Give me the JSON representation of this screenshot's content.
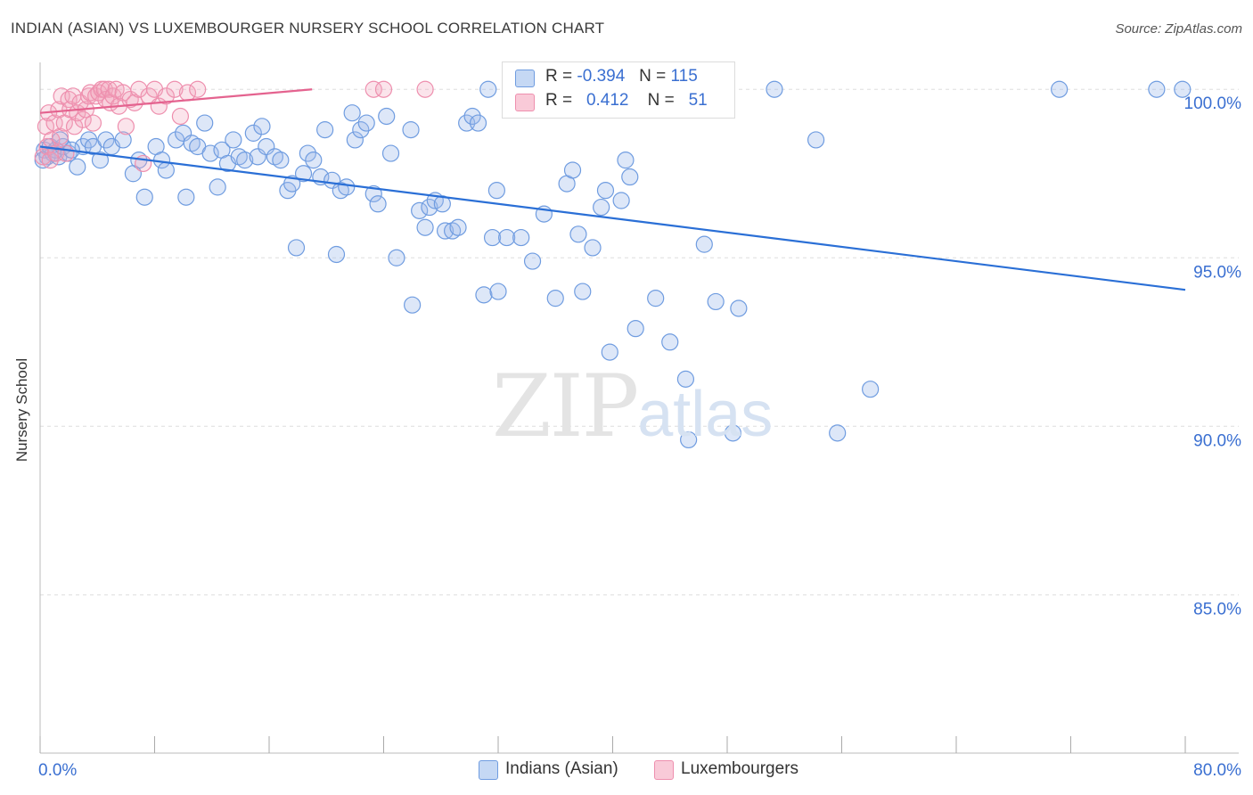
{
  "title": "INDIAN (ASIAN) VS LUXEMBOURGER NURSERY SCHOOL CORRELATION CHART",
  "source": "Source: ZipAtlas.com",
  "watermark": {
    "zip": "ZIP",
    "atlas": "atlas"
  },
  "legend": {
    "rows": [
      {
        "r_label": "R =",
        "r_value": "-0.394",
        "n_label": "N =",
        "n_value": "115",
        "color": "#9dbbea"
      },
      {
        "r_label": "R =",
        "r_value": "0.412",
        "n_label": "N =",
        "n_value": "51",
        "color": "#f2a6bd"
      }
    ]
  },
  "bottom_legend": [
    {
      "label": "Indians (Asian)",
      "color": "#9dbbea"
    },
    {
      "label": "Luxembourgers",
      "color": "#f2a6bd"
    }
  ],
  "chart_data": {
    "type": "scatter",
    "title": "INDIAN (ASIAN) VS LUXEMBOURGER NURSERY SCHOOL CORRELATION CHART",
    "xlabel": "",
    "ylabel": "Nursery School",
    "xlim": [
      0,
      80
    ],
    "ylim": [
      80.3,
      100.8
    ],
    "x_ticks": [
      0,
      80
    ],
    "x_tick_labels": [
      "0.0%",
      "80.0%"
    ],
    "y_ticks": [
      85,
      90,
      95,
      100
    ],
    "y_tick_labels": [
      "85.0%",
      "90.0%",
      "95.0%",
      "100.0%"
    ],
    "grid": true,
    "colors": {
      "blue": "#6f9ce0",
      "blue_line": "#2a6fd6",
      "pink": "#ee8fae",
      "pink_line": "#e4638f",
      "tick_text": "#3a6fd1"
    },
    "series": [
      {
        "name": "Indians (Asian)",
        "color": "#9dbbea",
        "trend": {
          "x": [
            0,
            80
          ],
          "y": [
            98.3,
            94.05
          ]
        },
        "points": [
          [
            0.3,
            98.2
          ],
          [
            0.5,
            98.0
          ],
          [
            0.7,
            98.3
          ],
          [
            0.9,
            98.1
          ],
          [
            1.1,
            98.2
          ],
          [
            1.3,
            98.0
          ],
          [
            1.6,
            98.3
          ],
          [
            2.0,
            98.1
          ],
          [
            2.6,
            97.7
          ],
          [
            3.0,
            98.3
          ],
          [
            3.4,
            98.5
          ],
          [
            3.7,
            98.3
          ],
          [
            4.2,
            97.9
          ],
          [
            4.6,
            98.5
          ],
          [
            5.0,
            98.3
          ],
          [
            5.8,
            98.5
          ],
          [
            6.5,
            97.5
          ],
          [
            6.9,
            97.9
          ],
          [
            7.3,
            96.8
          ],
          [
            8.1,
            98.3
          ],
          [
            8.5,
            97.9
          ],
          [
            8.8,
            97.6
          ],
          [
            9.5,
            98.5
          ],
          [
            10.0,
            98.7
          ],
          [
            10.2,
            96.8
          ],
          [
            10.6,
            98.4
          ],
          [
            11.0,
            98.3
          ],
          [
            11.5,
            99.0
          ],
          [
            11.9,
            98.1
          ],
          [
            12.4,
            97.1
          ],
          [
            12.7,
            98.2
          ],
          [
            13.1,
            97.8
          ],
          [
            13.5,
            98.5
          ],
          [
            13.9,
            98.0
          ],
          [
            14.3,
            97.9
          ],
          [
            14.9,
            98.7
          ],
          [
            15.2,
            98.0
          ],
          [
            15.5,
            98.9
          ],
          [
            15.8,
            98.3
          ],
          [
            16.4,
            98.0
          ],
          [
            16.8,
            97.9
          ],
          [
            17.3,
            97.0
          ],
          [
            17.6,
            97.2
          ],
          [
            17.9,
            95.3
          ],
          [
            18.4,
            97.5
          ],
          [
            18.7,
            98.1
          ],
          [
            19.1,
            97.9
          ],
          [
            19.6,
            97.4
          ],
          [
            19.9,
            98.8
          ],
          [
            20.4,
            97.3
          ],
          [
            20.7,
            95.1
          ],
          [
            21.0,
            97.0
          ],
          [
            21.4,
            97.1
          ],
          [
            21.8,
            99.3
          ],
          [
            22.0,
            98.5
          ],
          [
            22.4,
            98.8
          ],
          [
            22.8,
            99.0
          ],
          [
            23.3,
            96.9
          ],
          [
            23.6,
            96.6
          ],
          [
            24.2,
            99.2
          ],
          [
            24.5,
            98.1
          ],
          [
            24.9,
            95.0
          ],
          [
            25.9,
            98.8
          ],
          [
            26.0,
            93.6
          ],
          [
            26.5,
            96.4
          ],
          [
            26.9,
            95.9
          ],
          [
            27.2,
            96.5
          ],
          [
            27.6,
            96.7
          ],
          [
            28.1,
            96.6
          ],
          [
            28.3,
            95.8
          ],
          [
            28.8,
            95.8
          ],
          [
            29.2,
            95.9
          ],
          [
            29.8,
            99.0
          ],
          [
            30.2,
            99.2
          ],
          [
            30.6,
            99.0
          ],
          [
            31.0,
            93.9
          ],
          [
            31.3,
            100.0
          ],
          [
            31.6,
            95.6
          ],
          [
            31.9,
            97.0
          ],
          [
            32.6,
            95.6
          ],
          [
            32.0,
            94.0
          ],
          [
            33.6,
            95.6
          ],
          [
            34.4,
            94.9
          ],
          [
            35.2,
            96.3
          ],
          [
            36.0,
            93.8
          ],
          [
            36.8,
            97.2
          ],
          [
            37.2,
            97.6
          ],
          [
            37.6,
            95.7
          ],
          [
            37.9,
            94.0
          ],
          [
            38.6,
            95.3
          ],
          [
            39.2,
            96.5
          ],
          [
            39.5,
            97.0
          ],
          [
            39.8,
            92.2
          ],
          [
            40.6,
            96.7
          ],
          [
            40.9,
            97.9
          ],
          [
            41.2,
            97.4
          ],
          [
            41.6,
            92.9
          ],
          [
            43.0,
            93.8
          ],
          [
            44.0,
            92.5
          ],
          [
            45.1,
            91.4
          ],
          [
            45.3,
            89.6
          ],
          [
            46.4,
            95.4
          ],
          [
            47.2,
            93.7
          ],
          [
            48.4,
            89.8
          ],
          [
            48.8,
            93.5
          ],
          [
            54.2,
            98.5
          ],
          [
            55.7,
            89.8
          ],
          [
            58.0,
            91.1
          ],
          [
            71.2,
            100.0
          ],
          [
            78.0,
            100.0
          ],
          [
            79.8,
            100.0
          ],
          [
            51.3,
            100.0
          ],
          [
            0.2,
            97.9
          ],
          [
            1.4,
            98.5
          ],
          [
            2.2,
            98.2
          ]
        ]
      },
      {
        "name": "Luxembourgers",
        "color": "#f2a6bd",
        "trend": {
          "x": [
            0,
            19
          ],
          "y": [
            99.3,
            100.0
          ]
        },
        "points": [
          [
            0.2,
            98.0
          ],
          [
            0.4,
            98.9
          ],
          [
            0.5,
            98.3
          ],
          [
            0.6,
            99.3
          ],
          [
            0.7,
            97.9
          ],
          [
            0.8,
            98.5
          ],
          [
            1.0,
            99.0
          ],
          [
            1.1,
            98.1
          ],
          [
            1.3,
            99.4
          ],
          [
            1.4,
            98.6
          ],
          [
            1.5,
            99.8
          ],
          [
            1.7,
            99.0
          ],
          [
            1.8,
            98.1
          ],
          [
            2.0,
            99.7
          ],
          [
            2.1,
            99.4
          ],
          [
            2.3,
            99.8
          ],
          [
            2.4,
            98.9
          ],
          [
            2.6,
            99.3
          ],
          [
            2.8,
            99.6
          ],
          [
            3.0,
            99.1
          ],
          [
            3.2,
            99.4
          ],
          [
            3.4,
            99.8
          ],
          [
            3.5,
            99.9
          ],
          [
            3.7,
            99.0
          ],
          [
            3.9,
            99.8
          ],
          [
            4.1,
            99.9
          ],
          [
            4.3,
            100.0
          ],
          [
            4.5,
            100.0
          ],
          [
            4.6,
            99.7
          ],
          [
            4.8,
            100.0
          ],
          [
            4.9,
            99.6
          ],
          [
            5.1,
            99.8
          ],
          [
            5.3,
            100.0
          ],
          [
            5.5,
            99.5
          ],
          [
            5.8,
            99.9
          ],
          [
            6.0,
            98.9
          ],
          [
            6.3,
            99.7
          ],
          [
            6.6,
            99.6
          ],
          [
            6.9,
            100.0
          ],
          [
            7.2,
            97.8
          ],
          [
            7.6,
            99.8
          ],
          [
            8.0,
            100.0
          ],
          [
            8.3,
            99.5
          ],
          [
            8.8,
            99.8
          ],
          [
            9.4,
            100.0
          ],
          [
            9.8,
            99.2
          ],
          [
            10.3,
            99.9
          ],
          [
            11.0,
            100.0
          ],
          [
            23.3,
            100.0
          ],
          [
            26.9,
            100.0
          ],
          [
            24.0,
            100.0
          ]
        ]
      }
    ]
  }
}
